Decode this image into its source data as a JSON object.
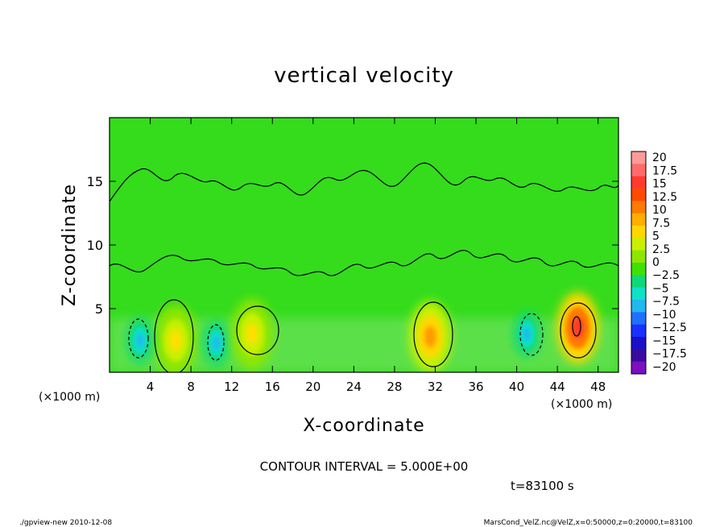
{
  "chart_data": {
    "type": "heatmap",
    "title": "vertical velocity",
    "xlabel": "X-coordinate",
    "ylabel": "Z-coordinate",
    "x_ticks": [
      "4",
      "8",
      "12",
      "16",
      "20",
      "24",
      "28",
      "32",
      "36",
      "40",
      "44",
      "48"
    ],
    "x_tick_values": [
      4,
      8,
      12,
      16,
      20,
      24,
      28,
      32,
      36,
      40,
      44,
      48
    ],
    "y_ticks": [
      "5",
      "10",
      "15"
    ],
    "y_tick_values": [
      5,
      10,
      15
    ],
    "xlim": [
      0,
      50
    ],
    "ylim": [
      0,
      20
    ],
    "x_unit_left": "(×1000 m)",
    "x_unit_right": "(×1000 m)",
    "contour_interval_text": "CONTOUR INTERVAL = 5.000E+00",
    "time_text": "t=83100 s",
    "colorbar": {
      "labels": [
        "20",
        "17.5",
        "15",
        "12.5",
        "10",
        "7.5",
        "5",
        "2.5",
        "0",
        "−2.5",
        "−5",
        "−7.5",
        "−10",
        "−12.5",
        "−15",
        "−17.5",
        "−20"
      ],
      "levels": [
        20,
        17.5,
        15,
        12.5,
        10,
        7.5,
        5,
        2.5,
        0,
        -2.5,
        -5,
        -7.5,
        -10,
        -12.5,
        -15,
        -17.5,
        -20
      ],
      "colors": [
        "#ff9a9a",
        "#ff6b6b",
        "#ff3b2f",
        "#ff4a00",
        "#ff7a00",
        "#ffae00",
        "#ffd700",
        "#c8f000",
        "#8ee600",
        "#40e000",
        "#10d878",
        "#10e0c8",
        "#20b8f0",
        "#2070ff",
        "#1a30ff",
        "#1a10c8",
        "#3a0aa0",
        "#7a10c0"
      ]
    },
    "features": [
      {
        "kind": "updraft",
        "x": 6.5,
        "z": 2.5,
        "peak": 5
      },
      {
        "kind": "downdraft",
        "x": 3,
        "z": 2.5,
        "peak": -5
      },
      {
        "kind": "downdraft",
        "x": 10.5,
        "z": 2.3,
        "peak": -5
      },
      {
        "kind": "updraft",
        "x": 14,
        "z": 3,
        "peak": 5
      },
      {
        "kind": "updraft",
        "x": 31.5,
        "z": 2.8,
        "peak": 10
      },
      {
        "kind": "downdraft",
        "x": 41,
        "z": 3,
        "peak": -5
      },
      {
        "kind": "updraft",
        "x": 46,
        "z": 3.5,
        "peak": 15
      }
    ]
  },
  "footer": {
    "left": "./gpview-new  2010-12-08",
    "right": "MarsCond_VelZ.nc@VelZ,x=0:50000,z=0:20000,t=83100"
  }
}
